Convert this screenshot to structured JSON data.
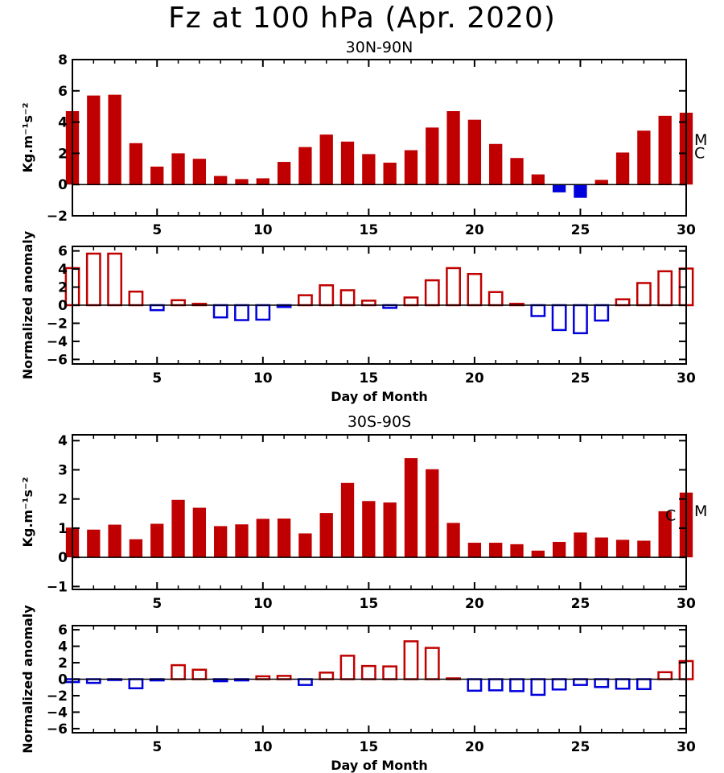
{
  "title": "Fz at 100 hPa (Apr. 2020)",
  "colors": {
    "positive": "#c00000",
    "negative": "#0000dd",
    "axis": "#000000"
  },
  "chart_data": [
    {
      "type": "bar",
      "panel_title": "30N-90N",
      "ylabel": "Kg.m⁻¹s⁻²",
      "xlabel": "",
      "fill": "solid",
      "ylim": [
        -2,
        8
      ],
      "xlim": [
        1,
        30
      ],
      "yticks": [
        -2,
        0,
        2,
        4,
        6,
        8
      ],
      "xticks": [
        5,
        10,
        15,
        20,
        25,
        30
      ],
      "x": [
        1,
        2,
        3,
        4,
        5,
        6,
        7,
        8,
        9,
        10,
        11,
        12,
        13,
        14,
        15,
        16,
        17,
        18,
        19,
        20,
        21,
        22,
        23,
        24,
        25,
        26,
        27,
        28,
        29,
        30
      ],
      "values": [
        4.7,
        5.7,
        5.75,
        2.65,
        1.15,
        2.0,
        1.65,
        0.55,
        0.35,
        0.4,
        1.45,
        2.4,
        3.2,
        2.75,
        1.95,
        1.4,
        2.2,
        3.65,
        4.7,
        4.15,
        2.6,
        1.7,
        0.65,
        -0.5,
        -0.85,
        0.3,
        2.05,
        3.45,
        4.4,
        4.6
      ],
      "markers": [
        {
          "label": "M",
          "value": 2.9
        },
        {
          "label": "C",
          "value": 2.05
        }
      ]
    },
    {
      "type": "bar",
      "panel_title": "",
      "ylabel": "Normalized anomaly",
      "xlabel": "Day of Month",
      "fill": "outline",
      "ylim": [
        -6.5,
        6.5
      ],
      "xlim": [
        1,
        30
      ],
      "yticks": [
        -6,
        -4,
        -2,
        0,
        2,
        4,
        6
      ],
      "xticks": [
        5,
        10,
        15,
        20,
        25,
        30
      ],
      "x": [
        1,
        2,
        3,
        4,
        5,
        6,
        7,
        8,
        9,
        10,
        11,
        12,
        13,
        14,
        15,
        16,
        17,
        18,
        19,
        20,
        21,
        22,
        23,
        24,
        25,
        26,
        27,
        28,
        29,
        30
      ],
      "values": [
        4.1,
        5.7,
        5.7,
        1.5,
        -0.55,
        0.55,
        0.15,
        -1.35,
        -1.65,
        -1.6,
        -0.2,
        1.1,
        2.2,
        1.65,
        0.5,
        -0.3,
        0.85,
        2.75,
        4.1,
        3.45,
        1.45,
        0.15,
        -1.2,
        -2.75,
        -3.1,
        -1.7,
        0.65,
        2.45,
        3.75,
        4.05
      ]
    },
    {
      "type": "bar",
      "panel_title": "30S-90S",
      "ylabel": "Kg.m⁻¹s⁻²",
      "xlabel": "",
      "fill": "solid",
      "ylim": [
        -1.1,
        4.2
      ],
      "xlim": [
        1,
        30
      ],
      "yticks": [
        -1,
        0,
        1,
        2,
        3,
        4
      ],
      "xticks": [
        5,
        10,
        15,
        20,
        25,
        30
      ],
      "x": [
        1,
        2,
        3,
        4,
        5,
        6,
        7,
        8,
        9,
        10,
        11,
        12,
        13,
        14,
        15,
        16,
        17,
        18,
        19,
        20,
        21,
        22,
        23,
        24,
        25,
        26,
        27,
        28,
        29,
        30
      ],
      "values": [
        1.02,
        0.95,
        1.12,
        0.62,
        1.15,
        1.97,
        1.7,
        1.07,
        1.13,
        1.32,
        1.33,
        0.82,
        1.52,
        2.55,
        1.93,
        1.88,
        3.4,
        3.02,
        1.18,
        0.5,
        0.5,
        0.45,
        0.23,
        0.53,
        0.85,
        0.68,
        0.6,
        0.57,
        1.58,
        2.22
      ],
      "markers": [
        {
          "label": "C",
          "value": 1.45
        },
        {
          "label": "M",
          "value": 1.6
        }
      ]
    },
    {
      "type": "bar",
      "panel_title": "",
      "ylabel": "Normalized anomaly",
      "xlabel": "Day of Month",
      "fill": "outline",
      "ylim": [
        -6.5,
        6.5
      ],
      "xlim": [
        1,
        30
      ],
      "yticks": [
        -6,
        -4,
        -2,
        0,
        2,
        4,
        6
      ],
      "xticks": [
        5,
        10,
        15,
        20,
        25,
        30
      ],
      "x": [
        1,
        2,
        3,
        4,
        5,
        6,
        7,
        8,
        9,
        10,
        11,
        12,
        13,
        14,
        15,
        16,
        17,
        18,
        19,
        20,
        21,
        22,
        23,
        24,
        25,
        26,
        27,
        28,
        29,
        30
      ],
      "values": [
        -0.35,
        -0.45,
        -0.1,
        -1.1,
        -0.15,
        1.7,
        1.15,
        -0.25,
        -0.15,
        0.35,
        0.4,
        -0.7,
        0.8,
        2.85,
        1.6,
        1.55,
        4.6,
        3.8,
        0.1,
        -1.4,
        -1.35,
        -1.45,
        -1.9,
        -1.25,
        -0.7,
        -0.95,
        -1.15,
        -1.2,
        0.85,
        2.2
      ]
    }
  ]
}
